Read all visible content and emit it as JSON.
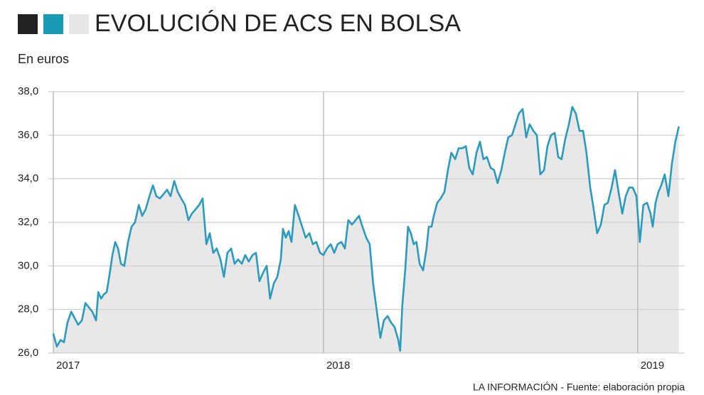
{
  "chart_data": {
    "type": "line",
    "title": "EVOLUCIÓN DE ACS EN BOLSA",
    "subtitle": "En euros",
    "source": "LA INFORMACIÓN - Fuente: elaboración propia",
    "color": "#2a9bbd",
    "fill": "#e8e8e8",
    "grid": true,
    "x": [
      2017.14,
      2017.151,
      2017.163,
      2017.174,
      2017.185,
      2017.197,
      2017.208,
      2017.219,
      2017.231,
      2017.242,
      2017.253,
      2017.264,
      2017.276,
      2017.283,
      2017.292,
      2017.301,
      2017.31,
      2017.321,
      2017.328,
      2017.337,
      2017.346,
      2017.355,
      2017.366,
      2017.378,
      2017.389,
      2017.4,
      2017.412,
      2017.423,
      2017.434,
      2017.446,
      2017.457,
      2017.468,
      2017.479,
      2017.491,
      2017.502,
      2017.513,
      2017.525,
      2017.536,
      2017.547,
      2017.559,
      2017.57,
      2017.581,
      2017.593,
      2017.604,
      2017.615,
      2017.627,
      2017.638,
      2017.649,
      2017.66,
      2017.672,
      2017.683,
      2017.694,
      2017.706,
      2017.717,
      2017.728,
      2017.74,
      2017.751,
      2017.762,
      2017.774,
      2017.785,
      2017.796,
      2017.808,
      2017.819,
      2017.83,
      2017.842,
      2017.853,
      2017.864,
      2017.871,
      2017.88,
      2017.889,
      2017.898,
      2017.909,
      2017.921,
      2017.932,
      2017.943,
      2017.955,
      2017.966,
      2017.977,
      2017.989,
      2018.0,
      2018.011,
      2018.023,
      2018.034,
      2018.045,
      2018.057,
      2018.068,
      2018.079,
      2018.091,
      2018.102,
      2018.113,
      2018.124,
      2018.136,
      2018.147,
      2018.158,
      2018.17,
      2018.181,
      2018.192,
      2018.204,
      2018.215,
      2018.226,
      2018.238,
      2018.244,
      2018.251,
      2018.26,
      2018.269,
      2018.278,
      2018.287,
      2018.296,
      2018.306,
      2018.317,
      2018.328,
      2018.335,
      2018.344,
      2018.351,
      2018.362,
      2018.373,
      2018.385,
      2018.396,
      2018.407,
      2018.419,
      2018.43,
      2018.441,
      2018.453,
      2018.464,
      2018.475,
      2018.487,
      2018.498,
      2018.509,
      2018.52,
      2018.532,
      2018.543,
      2018.554,
      2018.566,
      2018.577,
      2018.588,
      2018.6,
      2018.611,
      2018.622,
      2018.634,
      2018.645,
      2018.656,
      2018.668,
      2018.679,
      2018.69,
      2018.702,
      2018.713,
      2018.724,
      2018.736,
      2018.747,
      2018.758,
      2018.769,
      2018.781,
      2018.792,
      2018.803,
      2018.815,
      2018.826,
      2018.837,
      2018.849,
      2018.86,
      2018.871,
      2018.883,
      2018.894,
      2018.905,
      2018.917,
      2018.928,
      2018.939,
      2018.951,
      2018.962,
      2018.973,
      2018.984,
      2018.996,
      2019.007,
      2019.018,
      2019.03,
      2019.041,
      2019.048,
      2019.057,
      2019.066,
      2019.075,
      2019.086,
      2019.098,
      2019.109,
      2019.12,
      2019.131
    ],
    "values": [
      26.9,
      26.3,
      26.6,
      26.5,
      27.4,
      27.9,
      27.6,
      27.3,
      27.5,
      28.3,
      28.1,
      27.9,
      27.5,
      28.8,
      28.5,
      28.7,
      28.8,
      29.8,
      30.5,
      31.1,
      30.8,
      30.1,
      30.0,
      31.1,
      31.8,
      32.0,
      32.8,
      32.3,
      32.6,
      33.2,
      33.7,
      33.2,
      33.1,
      33.3,
      33.5,
      33.2,
      33.9,
      33.4,
      33.1,
      32.8,
      32.1,
      32.4,
      32.6,
      32.8,
      33.1,
      31.0,
      31.5,
      30.6,
      30.8,
      30.3,
      29.5,
      30.6,
      30.8,
      30.1,
      30.3,
      30.1,
      30.5,
      30.2,
      30.5,
      30.6,
      29.3,
      29.7,
      30.0,
      28.5,
      29.2,
      29.5,
      30.3,
      31.7,
      31.3,
      31.6,
      31.1,
      32.8,
      32.3,
      31.8,
      31.3,
      31.5,
      31.0,
      31.1,
      30.6,
      30.5,
      30.8,
      31.0,
      30.6,
      31.0,
      31.1,
      30.8,
      32.1,
      31.9,
      32.1,
      32.3,
      31.8,
      31.3,
      31.0,
      29.2,
      27.9,
      26.7,
      27.5,
      27.7,
      27.4,
      27.2,
      26.6,
      26.1,
      28.2,
      29.8,
      31.8,
      31.5,
      31.0,
      31.1,
      30.1,
      29.8,
      30.8,
      31.8,
      31.8,
      32.3,
      32.9,
      33.1,
      33.4,
      34.4,
      35.2,
      34.9,
      35.4,
      35.4,
      35.5,
      34.5,
      34.2,
      35.2,
      35.7,
      34.9,
      35.0,
      34.5,
      34.4,
      33.8,
      34.4,
      35.2,
      35.9,
      36.0,
      36.5,
      37.0,
      37.2,
      35.9,
      36.5,
      36.2,
      36.0,
      34.2,
      34.4,
      35.5,
      36.0,
      36.1,
      35.0,
      34.9,
      35.8,
      36.5,
      37.3,
      37.0,
      36.2,
      36.2,
      35.2,
      33.6,
      32.6,
      31.5,
      31.9,
      32.8,
      32.9,
      33.6,
      34.4,
      33.4,
      32.4,
      33.2,
      33.6,
      33.6,
      33.2,
      31.1,
      32.8,
      32.9,
      32.4,
      31.8,
      32.9,
      33.4,
      33.7,
      34.2,
      33.2,
      34.7,
      35.7,
      36.4
    ],
    "xlim": [
      2017.14,
      2019.15
    ],
    "xticks": [
      {
        "value": 2017.14,
        "label": "2017"
      },
      2018,
      2019
    ],
    "ylim": [
      26,
      38
    ],
    "yticks": [
      {
        "value": 26,
        "label": "26,0"
      },
      {
        "value": 28,
        "label": "28,0"
      },
      {
        "value": 30,
        "label": "30,0"
      },
      {
        "value": 32,
        "label": "32,0"
      },
      {
        "value": 34,
        "label": "34,0"
      },
      {
        "value": 36,
        "label": "36,0"
      },
      {
        "value": 38,
        "label": "38,0"
      }
    ]
  }
}
